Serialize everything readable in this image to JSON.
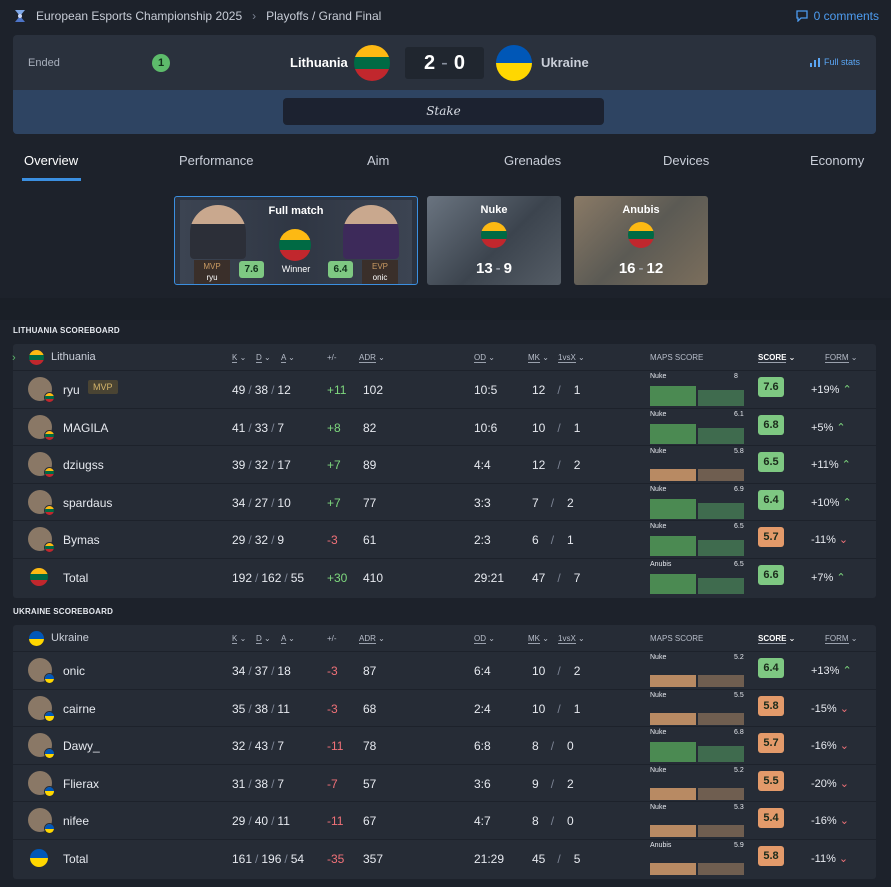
{
  "breadcrumb": {
    "event": "European Esports Championship 2025",
    "stage": "Playoffs / Grand Final"
  },
  "comments": "0 comments",
  "match": {
    "status": "Ended",
    "round_badge": "1",
    "team_a": "Lithuania",
    "team_b": "Ukraine",
    "score_a": "2",
    "score_b": "0",
    "full_stats": "Full stats",
    "sponsor": "Stake"
  },
  "tabs": [
    "Overview",
    "Performance",
    "Aim",
    "Grenades",
    "Devices",
    "Economy"
  ],
  "maps": {
    "full": {
      "title": "Full match",
      "winner": "Winner",
      "mvp_label": "MVP",
      "mvp_name": "ryu",
      "mvp_rating": "7.6",
      "evp_label": "EVP",
      "evp_name": "onic",
      "evp_rating": "6.4"
    },
    "nuke": {
      "title": "Nuke",
      "score_a": "13",
      "score_b": "9"
    },
    "anubis": {
      "title": "Anubis",
      "score_a": "16",
      "score_b": "12"
    }
  },
  "colors": {
    "lithuania": [
      "#fdb913",
      "#006a44",
      "#c1272d"
    ],
    "ukraine": [
      "#0057b7",
      "#ffd700"
    ],
    "positive": "#7ed87e",
    "negative": "#f07178",
    "accent": "#3b8fe0"
  },
  "lt_board": {
    "section": "LITHUANIA SCOREBOARD",
    "team": "Lithuania",
    "headers": {
      "k": "K",
      "d": "D",
      "a": "A",
      "pm": "+/-",
      "adr": "ADR",
      "od": "OD",
      "mk": "MK",
      "clutch": "1vsX",
      "maps": "MAPS SCORE",
      "score": "SCORE",
      "form": "FORM"
    },
    "players": [
      {
        "name": "ryu",
        "mvp": "MVP",
        "k": "49",
        "d": "38",
        "a": "12",
        "pm": "+11",
        "adr": "102",
        "od": "10:5",
        "mk": "12",
        "cl": "1",
        "map": "Nuke",
        "mapv": "8",
        "score": "7.6",
        "form": "+19%"
      },
      {
        "name": "MAGILA",
        "k": "41",
        "d": "33",
        "a": "7",
        "pm": "+8",
        "adr": "82",
        "od": "10:6",
        "mk": "10",
        "cl": "1",
        "map": "Nuke",
        "mapv": "6.1",
        "score": "6.8",
        "form": "+5%"
      },
      {
        "name": "dziugss",
        "k": "39",
        "d": "32",
        "a": "17",
        "pm": "+7",
        "adr": "89",
        "od": "4:4",
        "mk": "12",
        "cl": "2",
        "map": "Nuke",
        "mapv": "5.8",
        "score": "6.5",
        "form": "+11%"
      },
      {
        "name": "spardaus",
        "k": "34",
        "d": "27",
        "a": "10",
        "pm": "+7",
        "adr": "77",
        "od": "3:3",
        "mk": "7",
        "cl": "2",
        "map": "Nuke",
        "mapv": "6.9",
        "score": "6.4",
        "form": "+10%"
      },
      {
        "name": "Bymas",
        "k": "29",
        "d": "32",
        "a": "9",
        "pm": "-3",
        "adr": "61",
        "od": "2:3",
        "mk": "6",
        "cl": "1",
        "map": "Nuke",
        "mapv": "6.5",
        "score": "5.7",
        "form": "-11%"
      }
    ],
    "total": {
      "name": "Total",
      "k": "192",
      "d": "162",
      "a": "55",
      "pm": "+30",
      "adr": "410",
      "od": "29:21",
      "mk": "47",
      "cl": "7",
      "map": "Anubis",
      "mapv": "6.5",
      "score": "6.6",
      "form": "+7%"
    }
  },
  "ua_board": {
    "section": "UKRAINE SCOREBOARD",
    "team": "Ukraine",
    "headers": {
      "k": "K",
      "d": "D",
      "a": "A",
      "pm": "+/-",
      "adr": "ADR",
      "od": "OD",
      "mk": "MK",
      "clutch": "1vsX",
      "maps": "MAPS SCORE",
      "score": "SCORE",
      "form": "FORM"
    },
    "players": [
      {
        "name": "onic",
        "k": "34",
        "d": "37",
        "a": "18",
        "pm": "-3",
        "adr": "87",
        "od": "6:4",
        "mk": "10",
        "cl": "2",
        "map": "Nuke",
        "mapv": "5.2",
        "score": "6.4",
        "form": "+13%"
      },
      {
        "name": "cairne",
        "k": "35",
        "d": "38",
        "a": "11",
        "pm": "-3",
        "adr": "68",
        "od": "2:4",
        "mk": "10",
        "cl": "1",
        "map": "Nuke",
        "mapv": "5.5",
        "score": "5.8",
        "form": "-15%"
      },
      {
        "name": "Dawy_",
        "k": "32",
        "d": "43",
        "a": "7",
        "pm": "-11",
        "adr": "78",
        "od": "6:8",
        "mk": "8",
        "cl": "0",
        "map": "Nuke",
        "mapv": "6.8",
        "score": "5.7",
        "form": "-16%"
      },
      {
        "name": "Flierax",
        "k": "31",
        "d": "38",
        "a": "7",
        "pm": "-7",
        "adr": "57",
        "od": "3:6",
        "mk": "9",
        "cl": "2",
        "map": "Nuke",
        "mapv": "5.2",
        "score": "5.5",
        "form": "-20%"
      },
      {
        "name": "nifee",
        "k": "29",
        "d": "40",
        "a": "11",
        "pm": "-11",
        "adr": "67",
        "od": "4:7",
        "mk": "8",
        "cl": "0",
        "map": "Nuke",
        "mapv": "5.3",
        "score": "5.4",
        "form": "-16%"
      }
    ],
    "total": {
      "name": "Total",
      "k": "161",
      "d": "196",
      "a": "54",
      "pm": "-35",
      "adr": "357",
      "od": "21:29",
      "mk": "45",
      "cl": "5",
      "map": "Anubis",
      "mapv": "5.9",
      "score": "5.8",
      "form": "-11%"
    }
  }
}
